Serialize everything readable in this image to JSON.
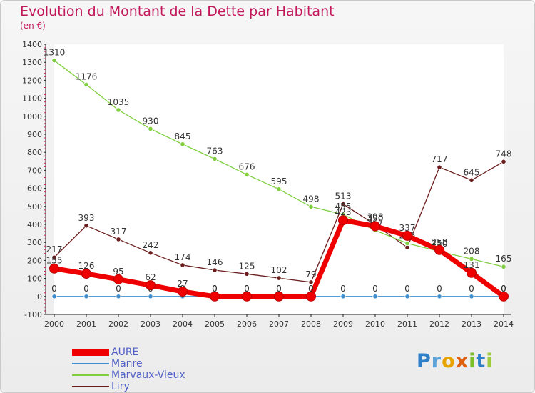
{
  "title": "Evolution du Montant de la Dette par Habitant",
  "subtitle": "(en €)",
  "logo": {
    "letters": [
      "P",
      "r",
      "o",
      "x",
      "i",
      "t",
      "i"
    ],
    "colors": [
      "#2f80c8",
      "#5ba3d9",
      "#e8a300",
      "#e06010",
      "#7bbf2a",
      "#2f80c8",
      "#9ecb3c"
    ]
  },
  "chart_data": {
    "type": "line",
    "title": "Evolution du Montant de la Dette par Habitant",
    "ylabel": "(en €)",
    "x": [
      "2000",
      "2001",
      "2002",
      "2003",
      "2004",
      "2005",
      "2006",
      "2007",
      "2008",
      "2009",
      "2010",
      "2011",
      "2012",
      "2013",
      "2014"
    ],
    "ylim": [
      -100,
      1400
    ],
    "yticks": [
      "-100",
      "0",
      "100",
      "200",
      "300",
      "400",
      "500",
      "600",
      "700",
      "800",
      "900",
      "1000",
      "1100",
      "1200",
      "1300",
      "1400"
    ],
    "grid": false,
    "legend_position": "bottom-left",
    "series": [
      {
        "name": "Liry",
        "color": "#6b1e1e",
        "thick": false,
        "values": [
          217,
          393,
          317,
          242,
          174,
          146,
          125,
          102,
          79,
          513,
          398,
          272,
          717,
          645,
          748
        ],
        "labels": [
          "217",
          "393",
          "317",
          "242",
          "174",
          "146",
          "125",
          "102",
          "79",
          "513",
          "398",
          "",
          "717",
          "645",
          "748"
        ]
      },
      {
        "name": "Marvaux-Vieux",
        "color": "#7fcf3f",
        "thick": false,
        "values": [
          1310,
          1176,
          1035,
          930,
          845,
          763,
          676,
          595,
          498,
          455,
          367,
          295,
          250,
          208,
          165
        ],
        "labels": [
          "1310",
          "1176",
          "1035",
          "930",
          "845",
          "763",
          "676",
          "595",
          "498",
          "455",
          "367",
          "295",
          "250",
          "208",
          "165"
        ]
      },
      {
        "name": "Manre",
        "color": "#3d8fd1",
        "thick": false,
        "values": [
          0,
          0,
          0,
          0,
          0,
          0,
          0,
          0,
          0,
          0,
          0,
          0,
          0,
          0,
          0
        ],
        "labels": [
          "0",
          "0",
          "0",
          "0",
          "0",
          "0",
          "0",
          "0",
          "0",
          "0",
          "0",
          "0",
          "0",
          "0",
          "0"
        ]
      },
      {
        "name": "AURE",
        "color": "#ee0000",
        "thick": true,
        "values": [
          155,
          126,
          95,
          62,
          27,
          0,
          0,
          0,
          0,
          423,
          390,
          337,
          258,
          131,
          0
        ],
        "labels": [
          "155",
          "126",
          "95",
          "62",
          "27",
          "0",
          "0",
          "0",
          "0",
          "423",
          "390",
          "337",
          "258",
          "131",
          "0"
        ]
      }
    ],
    "legend_order": [
      "AURE",
      "Manre",
      "Marvaux-Vieux",
      "Liry"
    ]
  }
}
